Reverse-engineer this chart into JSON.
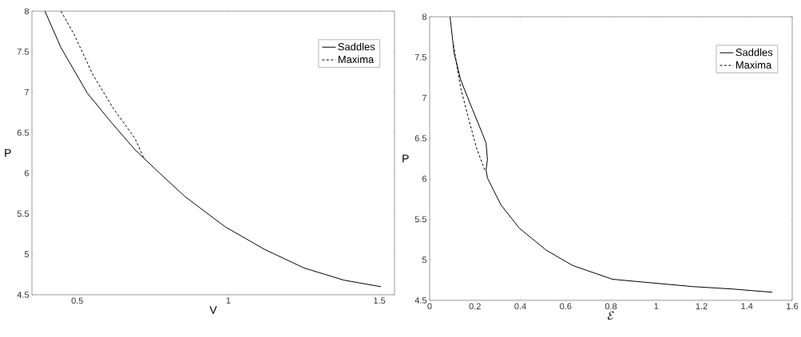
{
  "chart_data": [
    {
      "type": "line",
      "xlabel": "V",
      "ylabel": "P",
      "xlim": [
        0.35,
        1.55
      ],
      "ylim": [
        4.5,
        8
      ],
      "xticks": [
        0.5,
        1,
        1.5
      ],
      "yticks": [
        4.5,
        5,
        5.5,
        6,
        6.5,
        7,
        7.5,
        8
      ],
      "legend": "top right",
      "grid": false,
      "series": [
        {
          "name": "Saddles",
          "color": "#000000",
          "line_style": "solid",
          "x": [
            0.393,
            0.446,
            0.533,
            0.612,
            0.691,
            0.77,
            0.857,
            0.989,
            1.12,
            1.251,
            1.383,
            1.505
          ],
          "values": [
            8,
            7.55,
            6.99,
            6.63,
            6.29,
            6.01,
            5.71,
            5.34,
            5.06,
            4.83,
            4.68,
            4.6
          ]
        },
        {
          "name": "Maxima",
          "color": "#000000",
          "line_style": "dashed",
          "x": [
            0.446,
            0.49,
            0.551,
            0.621,
            0.691,
            0.722
          ],
          "values": [
            8,
            7.71,
            7.22,
            6.79,
            6.43,
            6.17
          ]
        }
      ]
    },
    {
      "type": "line",
      "xlabel": "\\mathcal{E}",
      "ylabel": "P",
      "xlim": [
        0,
        1.6
      ],
      "ylim": [
        4.5,
        8
      ],
      "xticks": [
        0,
        0.2,
        0.4,
        0.6,
        0.8,
        1,
        1.2,
        1.4,
        1.6
      ],
      "yticks": [
        4.5,
        5,
        5.5,
        6,
        6.5,
        7,
        7.5,
        8
      ],
      "legend": "top right",
      "grid": false,
      "series": [
        {
          "name": "Saddles",
          "color": "#000000",
          "line_style": "solid",
          "x": [
            0.09,
            0.108,
            0.137,
            0.184,
            0.231,
            0.249,
            0.255,
            0.249,
            0.255,
            0.314,
            0.396,
            0.514,
            0.631,
            0.807,
            1.042,
            1.16,
            1.336,
            1.512
          ],
          "values": [
            8,
            7.55,
            7.22,
            6.89,
            6.57,
            6.44,
            6.24,
            6.11,
            6.01,
            5.68,
            5.39,
            5.12,
            4.93,
            4.76,
            4.7,
            4.67,
            4.64,
            4.6
          ]
        },
        {
          "name": "Maxima",
          "color": "#000000",
          "line_style": "dashed",
          "x": [
            0.105,
            0.137,
            0.173,
            0.208,
            0.243
          ],
          "values": [
            7.65,
            7.12,
            6.73,
            6.37,
            6.11
          ]
        }
      ]
    }
  ]
}
